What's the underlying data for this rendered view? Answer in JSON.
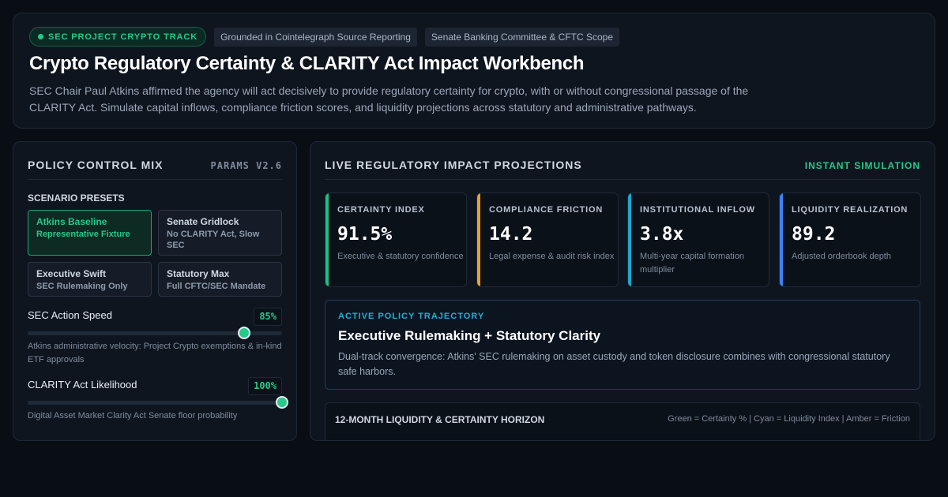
{
  "header": {
    "badge": "SEC PROJECT CRYPTO TRACK",
    "tags": [
      "Grounded in Cointelegraph Source Reporting",
      "Senate Banking Committee & CFTC Scope"
    ],
    "title": "Crypto Regulatory Certainty & CLARITY Act Impact Workbench",
    "description": "SEC Chair Paul Atkins affirmed the agency will act decisively to provide regulatory certainty for crypto, with or without congressional passage of the CLARITY Act. Simulate capital inflows, compliance friction scores, and liquidity projections across statutory and administrative pathways."
  },
  "policy_panel": {
    "title": "POLICY CONTROL MIX",
    "version": "PARAMS V2.6",
    "presets_title": "SCENARIO PRESETS",
    "presets": [
      {
        "name": "Atkins Baseline",
        "sub": "Representative Fixture",
        "active": true
      },
      {
        "name": "Senate Gridlock",
        "sub": "No CLARITY Act, Slow SEC",
        "active": false
      },
      {
        "name": "Executive Swift",
        "sub": "SEC Rulemaking Only",
        "active": false
      },
      {
        "name": "Statutory Max",
        "sub": "Full CFTC/SEC Mandate",
        "active": false
      }
    ],
    "controls": [
      {
        "label": "SEC Action Speed",
        "value_text": "85%",
        "value": 0.85,
        "help": "Atkins administrative velocity: Project Crypto exemptions & in-kind ETF approvals"
      },
      {
        "label": "CLARITY Act Likelihood",
        "value_text": "100%",
        "value": 1.0,
        "help": "Digital Asset Market Clarity Act Senate floor probability"
      }
    ]
  },
  "projections": {
    "title": "LIVE REGULATORY IMPACT PROJECTIONS",
    "mode": "INSTANT SIMULATION",
    "kpis": [
      {
        "title": "CERTAINTY INDEX",
        "value": "91.5%",
        "desc": "Executive & statutory confidence",
        "color": "#1fbf83"
      },
      {
        "title": "COMPLIANCE FRICTION",
        "value": "14.2",
        "desc": "Legal expense & audit risk index",
        "color": "#f0a020"
      },
      {
        "title": "INSTITUTIONAL INFLOW",
        "value": "3.8x",
        "desc": "Multi-year capital formation multiplier",
        "color": "#19a9d0"
      },
      {
        "title": "LIQUIDITY REALIZATION",
        "value": "89.2",
        "desc": "Adjusted orderbook depth",
        "color": "#3b82f6"
      }
    ],
    "trajectory": {
      "label": "ACTIVE POLICY TRAJECTORY",
      "headline": "Executive Rulemaking + Statutory Clarity",
      "text": "Dual-track convergence: Atkins' SEC rulemaking on asset custody and token disclosure combines with congressional statutory safe harbors."
    },
    "horizon": {
      "title": "12-MONTH LIQUIDITY & CERTAINTY HORIZON",
      "legend": "Green = Certainty % | Cyan = Liquidity Index | Amber = Friction"
    }
  },
  "colors": {
    "accent": "#27c98a",
    "background": "#090d14",
    "panel": "#0f151f"
  }
}
